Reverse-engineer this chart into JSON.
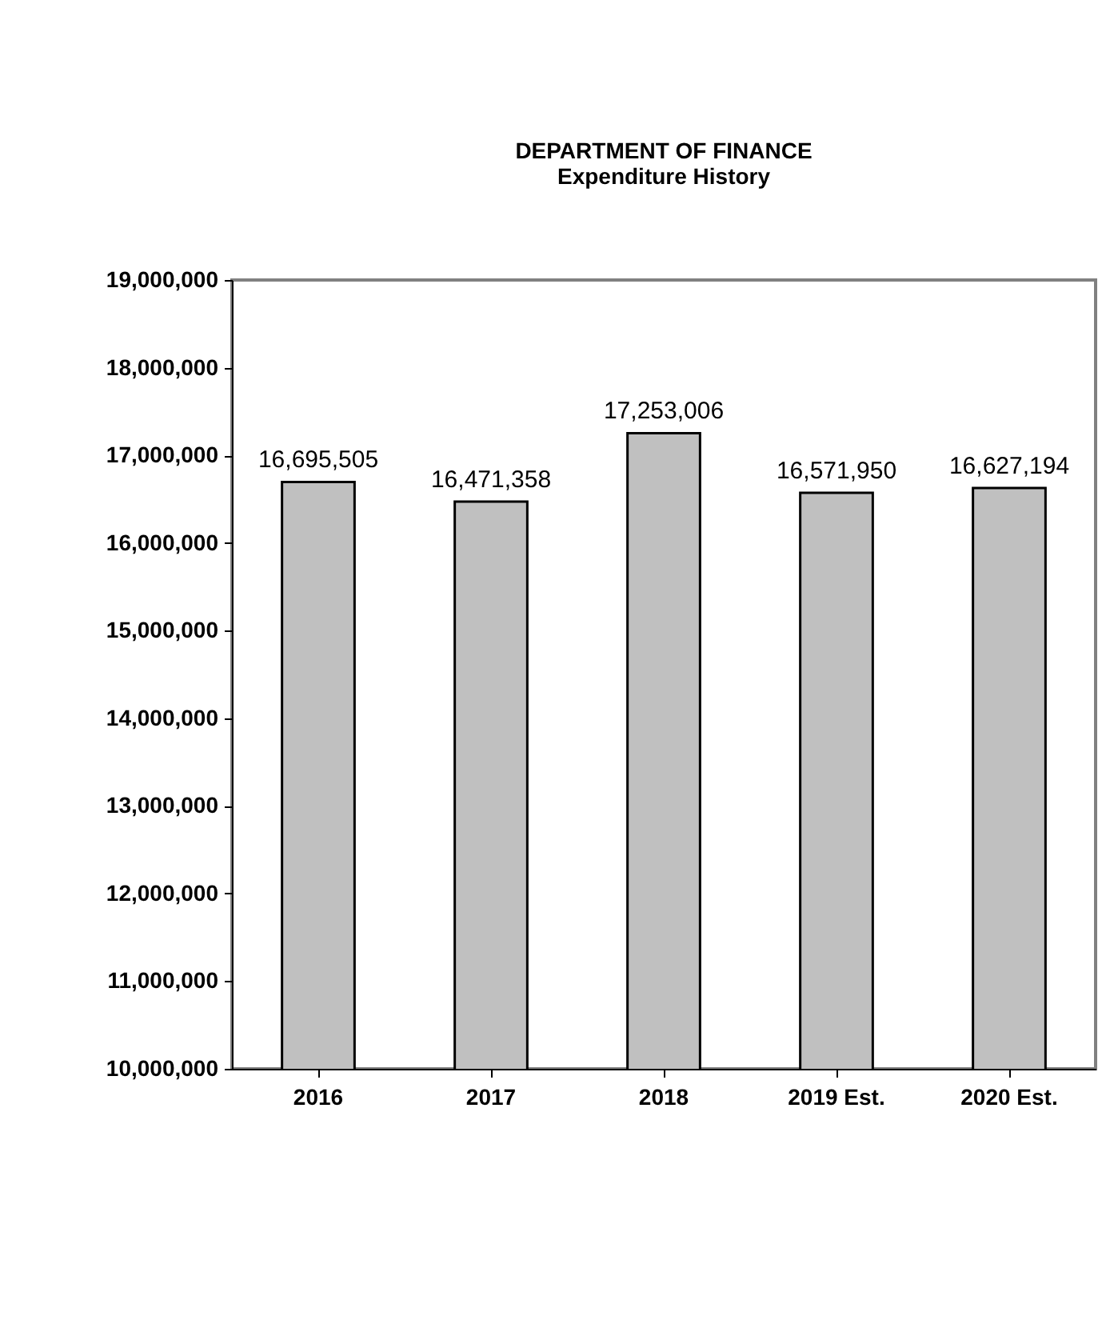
{
  "chart_data": {
    "type": "bar",
    "title": "DEPARTMENT OF FINANCE",
    "subtitle": "Expenditure History",
    "categories": [
      "2016",
      "2017",
      "2018",
      "2019 Est.",
      "2020 Est."
    ],
    "values": [
      16695505,
      16471358,
      17253006,
      16571950,
      16627194
    ],
    "value_labels": [
      "16,695,505",
      "16,471,358",
      "17,253,006",
      "16,571,950",
      "16,627,194"
    ],
    "color": "#c0c0c0",
    "ylim": [
      10000000,
      19000000
    ],
    "yticks": [
      {
        "value": 10000000,
        "label": "10,000,000"
      },
      {
        "value": 11000000,
        "label": "11,000,000"
      },
      {
        "value": 12000000,
        "label": "12,000,000"
      },
      {
        "value": 13000000,
        "label": "13,000,000"
      },
      {
        "value": 14000000,
        "label": "14,000,000"
      },
      {
        "value": 15000000,
        "label": "15,000,000"
      },
      {
        "value": 16000000,
        "label": "16,000,000"
      },
      {
        "value": 17000000,
        "label": "17,000,000"
      },
      {
        "value": 18000000,
        "label": "18,000,000"
      },
      {
        "value": 19000000,
        "label": "19,000,000"
      }
    ],
    "grid": false
  }
}
